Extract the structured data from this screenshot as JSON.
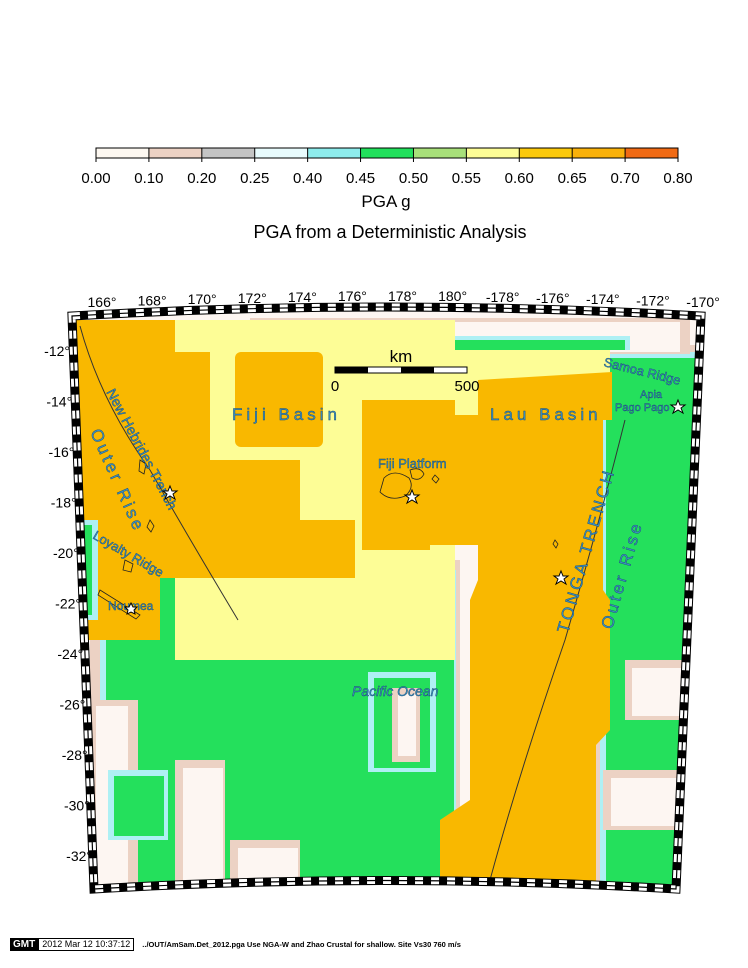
{
  "title": "PGA from a Deterministic Analysis",
  "colorbar": {
    "label": "PGA g",
    "ticks": [
      "0.00",
      "0.10",
      "0.20",
      "0.25",
      "0.40",
      "0.45",
      "0.50",
      "0.55",
      "0.60",
      "0.65",
      "0.70",
      "0.80"
    ],
    "colors": [
      "#fdf8f1",
      "#ecd2c4",
      "#c4c4c4",
      "#e8fbfd",
      "#8eecec",
      "#22e05c",
      "#a8e07a",
      "#fdfd96",
      "#fbc90c",
      "#f9b10a",
      "#f06a14"
    ]
  },
  "map": {
    "lon_labels": [
      "166°",
      "168°",
      "170°",
      "172°",
      "174°",
      "176°",
      "178°",
      "180°",
      "-178°",
      "-176°",
      "-174°",
      "-172°",
      "-170°"
    ],
    "lat_labels": [
      "-12°",
      "-14°",
      "-16°",
      "-18°",
      "-20°",
      "-22°",
      "-24°",
      "-26°",
      "-28°",
      "-30°",
      "-32°"
    ],
    "scale_bar": {
      "unit": "km",
      "start": "0",
      "end": "500"
    },
    "region_labels": {
      "fiji_basin": "Fiji Basin",
      "lau_basin": "Lau Basin",
      "fiji_platform": "Fiji Platform",
      "new_hebrides_trench": "New Hebrides Trench",
      "outer_rise_west": "Outer Rise",
      "loyalty_ridge": "Loyalty Ridge",
      "noumea": "Noumea",
      "pacific_ocean": "Pacific Ocean",
      "tonga_trench": "TONGA TRENCH",
      "outer_rise_east": "Outer Rise",
      "samoa_ridge": "Samoa Ridge",
      "apia": "Apia",
      "pago_pago": "Pago Pago"
    },
    "colors": {
      "orange": "#f9b800",
      "yellow": "#fdfd96",
      "green": "#24e05c",
      "cyan": "#aef0f4",
      "tan": "#ecd2c4",
      "offwhite": "#fdf6f2"
    }
  },
  "footer": {
    "logo": "GMT",
    "timestamp": "2012 Mar 12 10:37:12",
    "command": "../OUT/AmSam.Det_2012.pga Use NGA-W and Zhao Crustal for shallow. Site Vs30 760 m/s"
  }
}
